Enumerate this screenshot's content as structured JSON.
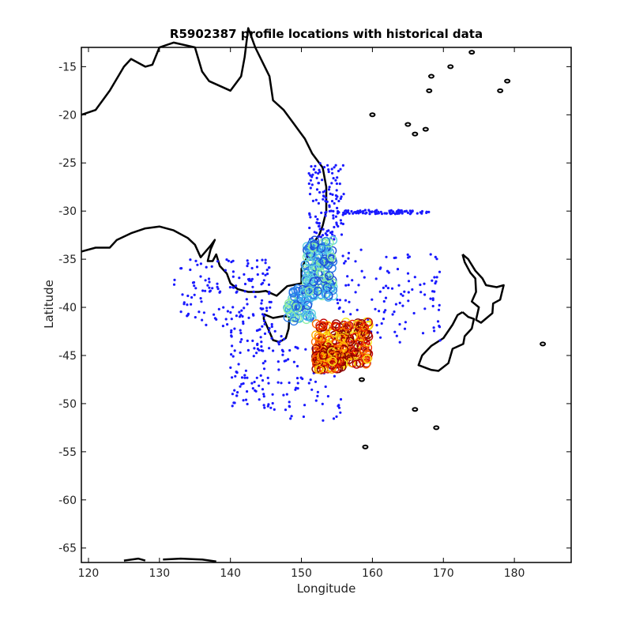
{
  "title": "R5902387 profile locations with historical data",
  "xlabel": "Longitude",
  "ylabel": "Latitude",
  "map_data": {
    "xlim": [
      119,
      188
    ],
    "ylim": [
      -66.5,
      -13
    ],
    "xticks": [
      120,
      130,
      140,
      150,
      160,
      170,
      180
    ],
    "yticks": [
      -15,
      -20,
      -25,
      -30,
      -35,
      -40,
      -45,
      -50,
      -55,
      -60,
      -65
    ],
    "colors": {
      "coastline": "#000000",
      "historical": "#1a1aff",
      "profiles_cool": [
        "#1f4fd6",
        "#2a7ae8",
        "#37a6ef",
        "#5fd0e0",
        "#8ff0a0"
      ],
      "profiles_warm": [
        "#f5ea1a",
        "#ffb000",
        "#ff6a00",
        "#f02b00",
        "#c00000",
        "#8a0000"
      ]
    },
    "historical_clusters": [
      {
        "lon": [
          155,
          168
        ],
        "lat": [
          -29.9,
          -30.3
        ],
        "n": 90
      },
      {
        "lon": [
          151,
          156
        ],
        "lat": [
          -25,
          -33
        ],
        "n": 120
      },
      {
        "lon": [
          132,
          146
        ],
        "lat": [
          -35,
          -42
        ],
        "n": 140
      },
      {
        "lon": [
          140,
          148
        ],
        "lat": [
          -42,
          -51
        ],
        "n": 110
      },
      {
        "lon": [
          155,
          170
        ],
        "lat": [
          -34,
          -44
        ],
        "n": 120
      },
      {
        "lon": [
          148,
          156
        ],
        "lat": [
          -44,
          -52
        ],
        "n": 60
      }
    ],
    "profile_clusters": [
      {
        "lon": [
          150.5,
          154.5
        ],
        "lat": [
          -33,
          -39
        ],
        "n": 160,
        "palette": "profiles_cool"
      },
      {
        "lon": [
          148,
          151.5
        ],
        "lat": [
          -38,
          -41.5
        ],
        "n": 60,
        "palette": "profiles_cool"
      },
      {
        "lon": [
          152,
          159.5
        ],
        "lat": [
          -41.5,
          -46
        ],
        "n": 220,
        "palette": "profiles_warm"
      },
      {
        "lon": [
          152,
          156
        ],
        "lat": [
          -44,
          -46.5
        ],
        "n": 80,
        "palette": "profiles_warm"
      }
    ]
  }
}
